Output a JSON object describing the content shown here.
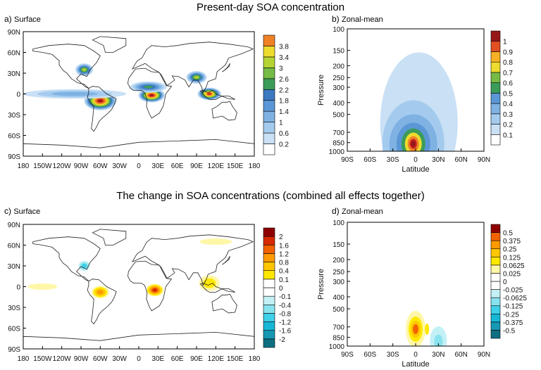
{
  "titles": {
    "top": "Present-day SOA concentration",
    "bottom": "The change in SOA concentrations (combined all effects together)"
  },
  "panels": {
    "a": {
      "label": "a)",
      "name": "Surface"
    },
    "b": {
      "label": "b)",
      "name": "Zonal-mean"
    },
    "c": {
      "label": "c)",
      "name": "Surface"
    },
    "d": {
      "label": "d)",
      "name": "Zonal-mean"
    }
  },
  "colors": {
    "present_scale": [
      "#ffffff",
      "#c9e0f5",
      "#a4cbee",
      "#7fb2e3",
      "#5b97d6",
      "#3d79bf",
      "#3b9c5a",
      "#75bb45",
      "#b6d334",
      "#eddb2e",
      "#f7b126",
      "#f08226",
      "#e14f23",
      "#c42222",
      "#961717"
    ],
    "change_scale": [
      "#0e6f82",
      "#1698b3",
      "#16b7d6",
      "#3dd0e8",
      "#88e3ef",
      "#c3f0f5",
      "#ffffff",
      "#ffffff",
      "#fff7a8",
      "#ffe800",
      "#ffc600",
      "#ff9a00",
      "#f26200",
      "#d62a00",
      "#8e0000"
    ]
  },
  "chart_data": [
    {
      "id": "a",
      "type": "heatmap",
      "title": "Surface",
      "x_ticks": [
        "180",
        "150W",
        "120W",
        "90W",
        "60W",
        "30W",
        "0",
        "30E",
        "60E",
        "90E",
        "120E",
        "150E",
        "180"
      ],
      "y_ticks": [
        "90N",
        "60N",
        "30N",
        "0",
        "30S",
        "60S",
        "90S"
      ],
      "colorbar": [
        "0.2",
        "0.6",
        "1",
        "1.4",
        "1.8",
        "2.2",
        "2.6",
        "3",
        "3.4",
        "3.8"
      ],
      "blobs": [
        {
          "lon": -60,
          "lat": -10,
          "rx": 22,
          "ry": 12,
          "level": 14
        },
        {
          "lon": 20,
          "lat": -2,
          "rx": 18,
          "ry": 9,
          "level": 14
        },
        {
          "lon": 110,
          "lat": 0,
          "rx": 16,
          "ry": 8,
          "level": 13
        },
        {
          "lon": -85,
          "lat": 35,
          "rx": 12,
          "ry": 8,
          "level": 8
        },
        {
          "lon": 90,
          "lat": 24,
          "rx": 14,
          "ry": 8,
          "level": 8
        },
        {
          "lon": 15,
          "lat": 10,
          "rx": 25,
          "ry": 7,
          "level": 6
        },
        {
          "lon": -100,
          "lat": 0,
          "rx": 70,
          "ry": 6,
          "level": 3
        }
      ]
    },
    {
      "id": "b",
      "type": "heatmap",
      "title": "Zonal-mean",
      "xlabel": "Latitude",
      "ylabel": "Pressure",
      "x_ticks": [
        "90S",
        "60S",
        "30S",
        "0",
        "30N",
        "60N",
        "90N"
      ],
      "y_ticks": [
        "100",
        "150",
        "200",
        "250",
        "300",
        "400",
        "500",
        "700",
        "850",
        "1000"
      ],
      "colorbar": [
        "0.1",
        "0.2",
        "0.3",
        "0.4",
        "0.5",
        "0.6",
        "0.7",
        "0.8",
        "0.9",
        "1"
      ],
      "peak": {
        "lat": -3,
        "pressure": 870,
        "level": 10
      }
    },
    {
      "id": "c",
      "type": "heatmap",
      "title": "Surface",
      "x_ticks": [
        "180",
        "150W",
        "120W",
        "90W",
        "60W",
        "30W",
        "0",
        "30E",
        "60E",
        "90E",
        "120E",
        "150E",
        "180"
      ],
      "y_ticks": [
        "90N",
        "60N",
        "30N",
        "0",
        "30S",
        "60S",
        "90S"
      ],
      "colorbar": [
        "-2",
        "-1.6",
        "-1.2",
        "-0.8",
        "-0.4",
        "-0.1",
        "0",
        "0.1",
        "0.4",
        "0.8",
        "1.2",
        "1.6",
        "2"
      ],
      "blobs": [
        {
          "lon": 25,
          "lat": -5,
          "rx": 12,
          "ry": 8,
          "level": 13
        },
        {
          "lon": -60,
          "lat": -8,
          "rx": 12,
          "ry": 8,
          "level": 11
        },
        {
          "lon": 110,
          "lat": 5,
          "rx": 14,
          "ry": 10,
          "level": 9
        },
        {
          "lon": -150,
          "lat": 0,
          "rx": 20,
          "ry": 4,
          "level": 8
        },
        {
          "lon": 120,
          "lat": 65,
          "rx": 22,
          "ry": 4,
          "level": 8
        },
        {
          "lon": -85,
          "lat": 30,
          "rx": 10,
          "ry": 8,
          "level": 3
        }
      ]
    },
    {
      "id": "d",
      "type": "heatmap",
      "title": "Zonal-mean",
      "xlabel": "Latitude",
      "ylabel": "Pressure",
      "x_ticks": [
        "90S",
        "60S",
        "30S",
        "0",
        "30N",
        "60N",
        "90N"
      ],
      "y_ticks": [
        "100",
        "150",
        "200",
        "250",
        "300",
        "400",
        "500",
        "700",
        "850",
        "1000"
      ],
      "colorbar": [
        "-0.5",
        "-0.375",
        "-0.25",
        "-0.125",
        "-0.0625",
        "-0.025",
        "0",
        "0.025",
        "0.0625",
        "0.125",
        "0.25",
        "0.375",
        "0.5"
      ],
      "peak": {
        "lat": 0,
        "pressure": 730,
        "level": 0.375
      }
    }
  ]
}
